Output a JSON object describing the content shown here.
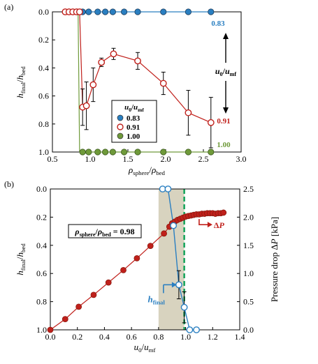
{
  "colors": {
    "blue": "#2a7fc1",
    "blue_fill": "#2a7fc1",
    "red": "#c0201b",
    "dark_red": "#8b1a10",
    "green": "#6f9a3a",
    "dashed_green": "#14a35a",
    "shade": "#d8d3bf",
    "axis": "#000000"
  },
  "chart_data": [
    {
      "type": "scatter",
      "panel_label": "(a)",
      "xlabel": "ρsphere/ρbed",
      "ylabel": "hfinal/hbed",
      "xlim": [
        0.5,
        3.0
      ],
      "ylim": [
        0.0,
        1.0
      ],
      "y_inverted": true,
      "x_ticks": [
        "0.5",
        "1.0",
        "1.5",
        "2.0",
        "2.5",
        "3.0"
      ],
      "y_ticks": [
        "0.0",
        "0.2",
        "0.4",
        "0.6",
        "0.8",
        "1.0"
      ],
      "legend": {
        "title": "u0/umf",
        "placement": "lower-center",
        "entries": [
          "0.83",
          "0.91",
          "1.00"
        ]
      },
      "series": [
        {
          "name": "0.83",
          "marker": "filled-circle",
          "color": "#2a7fc1",
          "x": [
            0.9,
            0.98,
            1.1,
            1.2,
            1.3,
            1.45,
            1.63,
            1.97,
            2.3,
            2.6
          ],
          "y": [
            0.0,
            0.0,
            0.0,
            0.0,
            0.0,
            0.0,
            0.0,
            0.0,
            0.0,
            0.0
          ]
        },
        {
          "name": "0.91",
          "marker": "open-circle",
          "color": "#c0201b",
          "x": [
            0.67,
            0.72,
            0.77,
            0.82,
            0.86,
            0.9,
            0.95,
            1.04,
            1.15,
            1.31,
            1.63,
            1.97,
            2.3,
            2.6
          ],
          "y": [
            0.0,
            0.0,
            0.0,
            0.0,
            0.0,
            0.68,
            0.67,
            0.52,
            0.36,
            0.3,
            0.35,
            0.51,
            0.72,
            0.79
          ],
          "error": [
            0,
            0,
            0,
            0,
            0,
            0.13,
            0.17,
            0.12,
            0.03,
            0.04,
            0.06,
            0.08,
            0.16,
            0.18
          ]
        },
        {
          "name": "1.00",
          "marker": "filled-circle",
          "color": "#6f9a3a",
          "x": [
            0.9,
            0.98,
            1.1,
            1.2,
            1.3,
            1.45,
            1.63,
            1.97,
            2.3,
            2.6
          ],
          "y": [
            1.0,
            1.0,
            1.0,
            1.0,
            1.0,
            1.0,
            1.0,
            1.0,
            1.0,
            1.0
          ]
        }
      ],
      "annotations": {
        "value_top": "0.83",
        "value_mid": "0.91",
        "value_bottom": "1.00",
        "arrow_label": "u0/umf"
      }
    },
    {
      "type": "line",
      "panel_label": "(b)",
      "xlabel": "u0/umf",
      "ylabel_left": "hfinal/hbed",
      "ylabel_right": "Pressure drop ΔP [kPa]",
      "xlim": [
        0.0,
        1.4
      ],
      "ylim_left": [
        0.0,
        1.0
      ],
      "ylim_right": [
        0.0,
        2.5
      ],
      "left_inverted": true,
      "x_ticks": [
        "0.0",
        "0.2",
        "0.4",
        "0.6",
        "0.8",
        "1.0",
        "1.2",
        "1.4"
      ],
      "y_ticks_left": [
        "0.0",
        "0.2",
        "0.4",
        "0.6",
        "0.8",
        "1.0"
      ],
      "y_ticks_right": [
        "0.0",
        "0.5",
        "1.0",
        "1.5",
        "2.0",
        "2.5"
      ],
      "annotation_box": "ρsphere/ρbed = 0.98",
      "dp_label": "ΔP",
      "h_label": "hfinal",
      "shaded_region_x": [
        0.8,
        0.99
      ],
      "dashed_line_x": 0.99,
      "series": [
        {
          "name": "ΔP",
          "axis": "right",
          "marker": "filled-circle",
          "color": "#c0201b",
          "x": [
            0.0,
            0.11,
            0.21,
            0.32,
            0.43,
            0.54,
            0.64,
            0.74,
            0.84,
            0.88,
            0.9,
            0.92,
            0.94,
            0.96,
            0.98,
            1.0,
            1.02,
            1.04,
            1.06,
            1.08,
            1.1,
            1.12,
            1.14,
            1.16,
            1.18,
            1.2,
            1.22,
            1.24,
            1.26,
            1.28
          ],
          "y": [
            0.0,
            0.19,
            0.41,
            0.62,
            0.84,
            1.06,
            1.27,
            1.49,
            1.71,
            1.83,
            1.89,
            1.92,
            1.95,
            1.97,
            1.99,
            2.01,
            2.02,
            2.03,
            2.04,
            2.05,
            2.05,
            2.06,
            2.06,
            2.07,
            2.07,
            2.07,
            2.06,
            2.07,
            2.07,
            2.08
          ]
        },
        {
          "name": "hfinal",
          "axis": "left",
          "marker": "open-circle",
          "color": "#2a7fc1",
          "x": [
            0.83,
            0.87,
            0.91,
            0.95,
            0.99,
            1.03,
            1.08
          ],
          "y": [
            0.0,
            0.0,
            0.26,
            0.68,
            0.84,
            1.0,
            1.0
          ],
          "error": [
            0,
            0,
            0,
            0.1,
            0.11,
            0,
            0
          ]
        }
      ]
    }
  ]
}
